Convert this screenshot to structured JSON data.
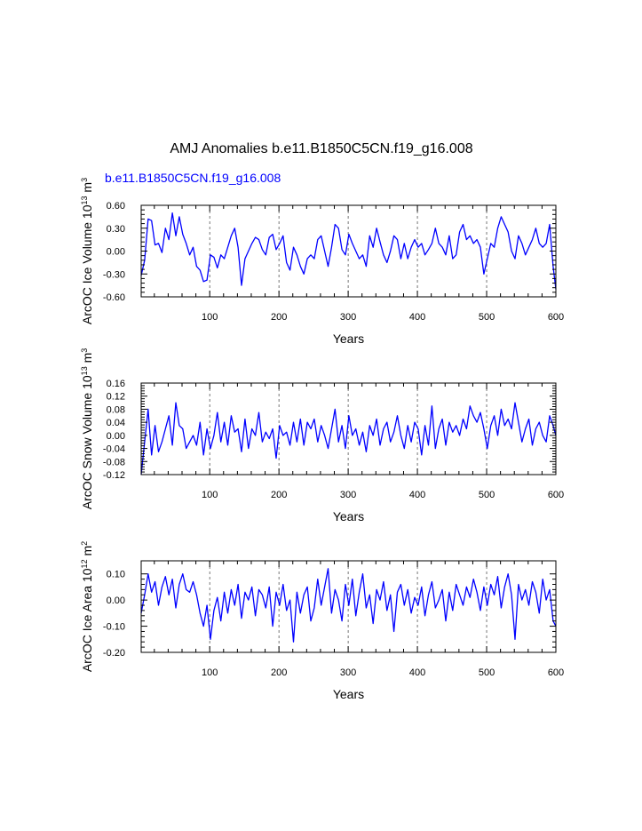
{
  "figure": {
    "title": "AMJ Anomalies b.e11.B1850C5CN.f19_g16.008",
    "subtitle": "b.e11.B1850C5CN.f19_g16.008",
    "line_color": "#0000ff",
    "grid_color": "#555555"
  },
  "chart_data": [
    {
      "type": "line",
      "title": "",
      "xlabel": "Years",
      "ylabel": {
        "main": "ArcOC Ice Volume 10",
        "exp": "13",
        "unit": " m",
        "unit_exp": "3"
      },
      "xlim": [
        1,
        600
      ],
      "ylim": [
        -0.6,
        0.6
      ],
      "xticks": [
        100,
        200,
        300,
        400,
        500,
        600
      ],
      "xtick_labels": [
        "100",
        "200",
        "300",
        "400",
        "500",
        "600"
      ],
      "yticks": [
        -0.6,
        -0.3,
        0.0,
        0.3,
        0.6
      ],
      "ytick_labels": [
        "-0.60",
        "-0.30",
        "0.00",
        "0.30",
        "0.60"
      ],
      "grid": "x-dashed",
      "series": [
        {
          "x": [
            1,
            6,
            11,
            16,
            21,
            26,
            31,
            36,
            41,
            46,
            51,
            56,
            61,
            66,
            71,
            76,
            81,
            86,
            91,
            96,
            101,
            106,
            111,
            116,
            121,
            126,
            131,
            136,
            141,
            146,
            151,
            156,
            161,
            166,
            171,
            176,
            181,
            186,
            191,
            196,
            201,
            206,
            211,
            216,
            221,
            226,
            231,
            236,
            241,
            246,
            251,
            256,
            261,
            266,
            271,
            276,
            281,
            286,
            291,
            296,
            301,
            306,
            311,
            316,
            321,
            326,
            331,
            336,
            341,
            346,
            351,
            356,
            361,
            366,
            371,
            376,
            381,
            386,
            391,
            396,
            401,
            406,
            411,
            416,
            421,
            426,
            431,
            436,
            441,
            446,
            451,
            456,
            461,
            466,
            471,
            476,
            481,
            486,
            491,
            496,
            501,
            506,
            511,
            516,
            521,
            526,
            531,
            536,
            541,
            546,
            551,
            556,
            561,
            566,
            571,
            576,
            581,
            586,
            591,
            596,
            600
          ],
          "values": [
            -0.32,
            -0.12,
            0.42,
            0.4,
            0.08,
            0.1,
            -0.02,
            0.3,
            0.15,
            0.5,
            0.2,
            0.45,
            0.22,
            0.1,
            -0.05,
            0.05,
            -0.2,
            -0.25,
            -0.4,
            -0.38,
            -0.05,
            -0.08,
            -0.22,
            -0.05,
            -0.1,
            0.05,
            0.2,
            0.3,
            0.05,
            -0.45,
            -0.1,
            0.0,
            0.1,
            0.18,
            0.15,
            0.02,
            -0.05,
            0.18,
            0.22,
            0.02,
            0.1,
            0.2,
            -0.15,
            -0.25,
            0.05,
            -0.05,
            -0.2,
            -0.3,
            -0.1,
            -0.05,
            -0.1,
            0.15,
            0.2,
            0.0,
            -0.2,
            0.05,
            0.35,
            0.3,
            0.02,
            -0.05,
            0.22,
            0.1,
            0.0,
            -0.1,
            -0.05,
            -0.2,
            0.2,
            0.05,
            0.3,
            0.12,
            -0.05,
            -0.15,
            0.0,
            0.2,
            0.15,
            -0.1,
            0.1,
            -0.1,
            0.05,
            0.15,
            0.05,
            0.1,
            -0.05,
            0.02,
            0.1,
            0.3,
            0.1,
            0.05,
            -0.05,
            0.2,
            -0.1,
            -0.05,
            0.25,
            0.35,
            0.15,
            0.2,
            0.1,
            0.15,
            0.05,
            -0.3,
            -0.1,
            0.1,
            0.05,
            0.3,
            0.45,
            0.35,
            0.25,
            0.0,
            -0.1,
            0.2,
            0.1,
            -0.05,
            0.05,
            0.15,
            0.3,
            0.1,
            0.05,
            0.1,
            0.35,
            -0.2,
            -0.5
          ]
        }
      ]
    },
    {
      "type": "line",
      "title": "",
      "xlabel": "Years",
      "ylabel": {
        "main": "ArcOC Snow Volume 10",
        "exp": "13",
        "unit": " m",
        "unit_exp": "3"
      },
      "xlim": [
        1,
        600
      ],
      "ylim": [
        -0.12,
        0.16
      ],
      "xticks": [
        100,
        200,
        300,
        400,
        500,
        600
      ],
      "xtick_labels": [
        "100",
        "200",
        "300",
        "400",
        "500",
        "600"
      ],
      "yticks": [
        -0.12,
        -0.08,
        -0.04,
        0.0,
        0.04,
        0.08,
        0.12,
        0.16
      ],
      "ytick_labels": [
        "-0.12",
        "-0.08",
        "-0.04",
        "0.00",
        "0.04",
        "0.08",
        "0.12",
        "0.16"
      ],
      "grid": "x-dashed",
      "series": [
        {
          "x": [
            1,
            6,
            11,
            16,
            21,
            26,
            31,
            36,
            41,
            46,
            51,
            56,
            61,
            66,
            71,
            76,
            81,
            86,
            91,
            96,
            101,
            106,
            111,
            116,
            121,
            126,
            131,
            136,
            141,
            146,
            151,
            156,
            161,
            166,
            171,
            176,
            181,
            186,
            191,
            196,
            201,
            206,
            211,
            216,
            221,
            226,
            231,
            236,
            241,
            246,
            251,
            256,
            261,
            266,
            271,
            276,
            281,
            286,
            291,
            296,
            301,
            306,
            311,
            316,
            321,
            326,
            331,
            336,
            341,
            346,
            351,
            356,
            361,
            366,
            371,
            376,
            381,
            386,
            391,
            396,
            401,
            406,
            411,
            416,
            421,
            426,
            431,
            436,
            441,
            446,
            451,
            456,
            461,
            466,
            471,
            476,
            481,
            486,
            491,
            496,
            501,
            506,
            511,
            516,
            521,
            526,
            531,
            536,
            541,
            546,
            551,
            556,
            561,
            566,
            571,
            576,
            581,
            586,
            591,
            596,
            600
          ],
          "values": [
            -0.12,
            -0.02,
            0.08,
            -0.06,
            0.03,
            -0.05,
            -0.02,
            0.02,
            0.06,
            -0.03,
            0.1,
            0.03,
            0.02,
            -0.04,
            -0.02,
            0.0,
            -0.03,
            0.04,
            -0.06,
            0.02,
            -0.04,
            0.0,
            0.07,
            -0.02,
            0.04,
            -0.03,
            0.06,
            0.01,
            0.02,
            -0.05,
            0.05,
            -0.04,
            0.02,
            0.0,
            0.07,
            -0.02,
            0.01,
            -0.01,
            0.02,
            -0.07,
            0.03,
            0.0,
            0.01,
            -0.03,
            0.04,
            -0.02,
            0.05,
            -0.03,
            0.04,
            0.02,
            0.05,
            -0.02,
            0.03,
            0.0,
            -0.04,
            0.02,
            0.08,
            -0.02,
            0.03,
            -0.04,
            0.06,
            0.0,
            0.02,
            -0.03,
            0.01,
            -0.05,
            0.03,
            0.0,
            0.05,
            -0.03,
            0.02,
            0.04,
            -0.02,
            0.01,
            0.06,
            0.0,
            -0.04,
            0.03,
            -0.02,
            0.04,
            0.02,
            -0.06,
            0.03,
            -0.03,
            0.09,
            -0.04,
            0.02,
            0.05,
            -0.03,
            0.04,
            0.01,
            0.03,
            0.0,
            0.05,
            0.02,
            0.09,
            0.06,
            0.04,
            0.07,
            0.02,
            -0.04,
            0.03,
            0.06,
            0.0,
            0.08,
            0.03,
            0.05,
            0.02,
            0.1,
            0.04,
            -0.02,
            0.02,
            0.05,
            -0.03,
            0.02,
            0.04,
            0.0,
            -0.02,
            0.06,
            0.03,
            0.0
          ]
        }
      ]
    },
    {
      "type": "line",
      "title": "",
      "xlabel": "Years",
      "ylabel": {
        "main": "ArcOC Ice Area 10",
        "exp": "12",
        "unit": " m",
        "unit_exp": "2"
      },
      "xlim": [
        1,
        600
      ],
      "ylim": [
        -0.2,
        0.15
      ],
      "xticks": [
        100,
        200,
        300,
        400,
        500,
        600
      ],
      "xtick_labels": [
        "100",
        "200",
        "300",
        "400",
        "500",
        "600"
      ],
      "yticks": [
        -0.2,
        -0.1,
        0.0,
        0.1
      ],
      "ytick_labels": [
        "-0.20",
        "-0.10",
        "0.00",
        "0.10"
      ],
      "grid": "x-dashed",
      "series": [
        {
          "x": [
            1,
            6,
            11,
            16,
            21,
            26,
            31,
            36,
            41,
            46,
            51,
            56,
            61,
            66,
            71,
            76,
            81,
            86,
            91,
            96,
            101,
            106,
            111,
            116,
            121,
            126,
            131,
            136,
            141,
            146,
            151,
            156,
            161,
            166,
            171,
            176,
            181,
            186,
            191,
            196,
            201,
            206,
            211,
            216,
            221,
            226,
            231,
            236,
            241,
            246,
            251,
            256,
            261,
            266,
            271,
            276,
            281,
            286,
            291,
            296,
            301,
            306,
            311,
            316,
            321,
            326,
            331,
            336,
            341,
            346,
            351,
            356,
            361,
            366,
            371,
            376,
            381,
            386,
            391,
            396,
            401,
            406,
            411,
            416,
            421,
            426,
            431,
            436,
            441,
            446,
            451,
            456,
            461,
            466,
            471,
            476,
            481,
            486,
            491,
            496,
            501,
            506,
            511,
            516,
            521,
            526,
            531,
            536,
            541,
            546,
            551,
            556,
            561,
            566,
            571,
            576,
            581,
            586,
            591,
            596,
            600
          ],
          "values": [
            -0.05,
            0.02,
            0.1,
            0.03,
            0.07,
            -0.02,
            0.05,
            0.09,
            0.02,
            0.08,
            -0.03,
            0.06,
            0.1,
            0.04,
            0.03,
            0.07,
            0.02,
            -0.05,
            -0.1,
            -0.02,
            -0.15,
            -0.04,
            0.01,
            -0.08,
            0.03,
            -0.05,
            0.04,
            -0.02,
            0.06,
            -0.07,
            0.03,
            0.0,
            0.05,
            -0.06,
            0.04,
            0.02,
            -0.03,
            0.05,
            -0.1,
            0.03,
            -0.02,
            0.06,
            -0.04,
            0.0,
            -0.16,
            0.03,
            -0.05,
            0.02,
            0.05,
            -0.08,
            -0.03,
            0.08,
            -0.02,
            0.05,
            0.12,
            -0.05,
            0.04,
            0.0,
            -0.08,
            0.06,
            -0.02,
            0.08,
            -0.06,
            0.03,
            0.1,
            -0.03,
            0.02,
            -0.09,
            0.04,
            0.0,
            0.07,
            -0.04,
            0.02,
            -0.12,
            0.03,
            0.06,
            -0.02,
            0.04,
            -0.05,
            0.01,
            -0.02,
            0.05,
            -0.06,
            0.02,
            0.07,
            -0.03,
            0.0,
            0.04,
            -0.08,
            0.03,
            -0.04,
            0.06,
            0.02,
            -0.02,
            0.05,
            0.01,
            0.08,
            0.03,
            -0.04,
            0.05,
            -0.02,
            0.06,
            0.02,
            0.09,
            -0.03,
            0.05,
            0.1,
            0.02,
            -0.15,
            0.06,
            0.0,
            0.04,
            -0.02,
            0.07,
            0.03,
            -0.05,
            0.08,
            0.0,
            0.04,
            -0.08,
            -0.1
          ]
        }
      ]
    }
  ]
}
